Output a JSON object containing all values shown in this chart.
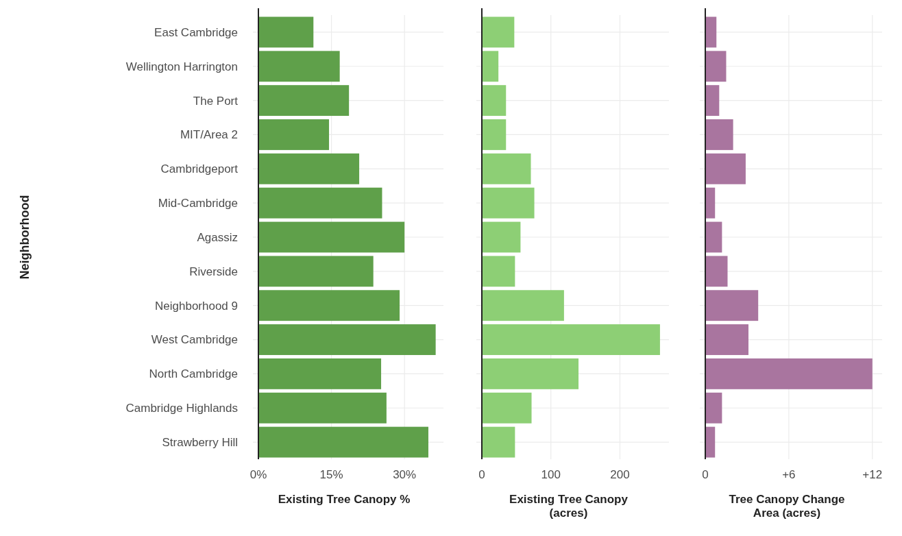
{
  "chart_data": [
    {
      "type": "bar",
      "orientation": "horizontal",
      "ylabel": "Neighborhood",
      "xlabel": "Existing Tree Canopy %",
      "categories": [
        "East Cambridge",
        "Wellington Harrington",
        "The Port",
        "MIT/Area 2",
        "Cambridgeport",
        "Mid-Cambridge",
        "Agassiz",
        "Riverside",
        "Neighborhood 9",
        "West Cambridge",
        "North Cambridge",
        "Cambridge Highlands",
        "Strawberry Hill"
      ],
      "color": "#5fa04a",
      "values": [
        11.3,
        16.7,
        18.6,
        14.5,
        20.7,
        25.4,
        30,
        23.6,
        29,
        36.4,
        25.2,
        26.3,
        34.9
      ],
      "xlim": [
        0,
        38
      ],
      "xticks": [
        {
          "value": 0,
          "label": "0%"
        },
        {
          "value": 15,
          "label": "15%"
        },
        {
          "value": 30,
          "label": "30%"
        }
      ],
      "grid": true
    },
    {
      "type": "bar",
      "orientation": "horizontal",
      "xlabel": "Existing Tree Canopy\n(acres)",
      "categories": [
        null,
        null,
        null,
        null,
        null,
        null,
        null,
        null,
        null,
        null,
        null,
        null,
        null
      ],
      "color": "#8dcf75",
      "values": [
        47,
        24,
        35,
        35,
        71,
        76,
        56,
        48,
        119,
        258,
        140,
        72,
        48
      ],
      "xlim": [
        0,
        271
      ],
      "xticks": [
        0,
        100,
        200
      ],
      "grid": true,
      "tick_labels": "x"
    },
    {
      "type": "bar",
      "orientation": "horizontal",
      "xlabel": "Tree Canopy Change\nArea (acres)",
      "categories": [
        null,
        null,
        null,
        null,
        null,
        null,
        null,
        null,
        null,
        null,
        null,
        null,
        null
      ],
      "color": "#a9759f",
      "values": [
        0.8,
        1.5,
        1.0,
        2.0,
        2.9,
        0.7,
        1.2,
        1.6,
        3.8,
        3.1,
        12.0,
        1.2,
        0.7
      ],
      "xlim": [
        0,
        12.7
      ],
      "xticks": [
        0,
        {
          "value": 6,
          "label": "+6"
        },
        {
          "value": 12,
          "label": "+12"
        }
      ],
      "grid": true,
      "tick_labels": "x"
    }
  ]
}
